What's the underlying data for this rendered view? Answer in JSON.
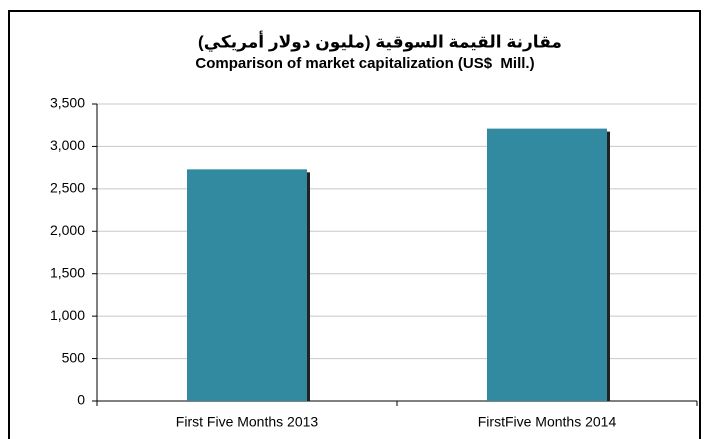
{
  "chart_data": {
    "type": "bar",
    "title": "مقارنة القيمة السوقية (مليون دولار أمريكي)",
    "subtitle": "Comparison of market capitalization (US$  Mill.)",
    "categories": [
      "First Five Months 2013",
      "FirstFive Months 2014"
    ],
    "values": [
      2730,
      3210
    ],
    "color": "#318aa0",
    "ylim": [
      0,
      3500
    ],
    "yticks": [
      0,
      500,
      {
        "value": 1000,
        "label": "1,000"
      },
      {
        "value": 1500,
        "label": "1,500"
      },
      {
        "value": 2000,
        "label": "2,000"
      },
      {
        "value": 2500,
        "label": "2,500"
      },
      {
        "value": 3000,
        "label": "3,000"
      },
      {
        "value": 3500,
        "label": "3,500"
      }
    ],
    "grid": true
  }
}
